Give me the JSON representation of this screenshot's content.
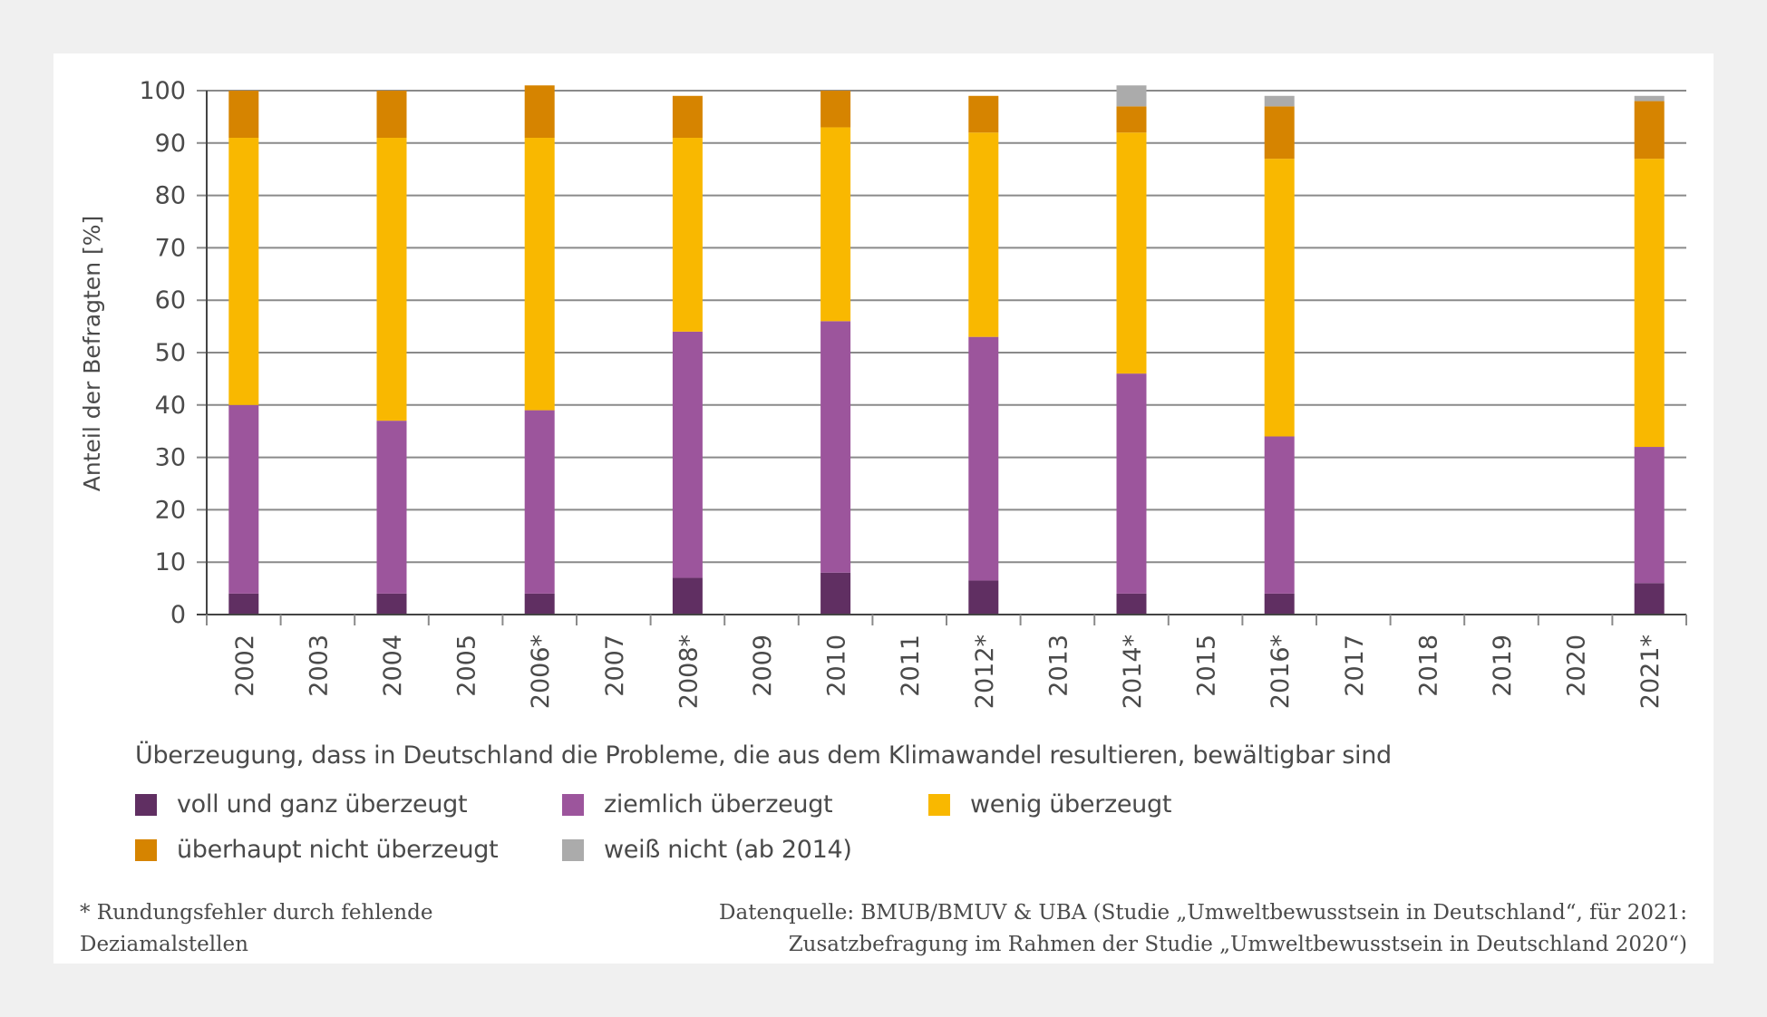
{
  "chart_data": {
    "type": "bar",
    "stacked": true,
    "title": "Überzeugung, dass in Deutschland die Probleme, die aus dem Klimawandel resultieren, bewältigbar sind",
    "xlabel": "",
    "ylabel": "Anteil der Befragten [%]",
    "ylim": [
      0,
      100
    ],
    "yticks": [
      0,
      10,
      20,
      30,
      40,
      50,
      60,
      70,
      80,
      90,
      100
    ],
    "grid": true,
    "legend_position": "bottom",
    "categories": [
      "2002",
      "2003",
      "2004",
      "2005",
      "2006*",
      "2007",
      "2008*",
      "2009",
      "2010",
      "2011",
      "2012*",
      "2013",
      "2014*",
      "2015",
      "2016*",
      "2017",
      "2018",
      "2019",
      "2020",
      "2021*"
    ],
    "series": [
      {
        "name": "voll und ganz überzeugt",
        "color": "#602f62",
        "values": [
          4,
          null,
          4,
          null,
          4,
          null,
          7,
          null,
          8,
          null,
          6.5,
          null,
          4,
          null,
          4,
          null,
          null,
          null,
          null,
          6
        ]
      },
      {
        "name": "ziemlich überzeugt",
        "color": "#9c559c",
        "values": [
          36,
          null,
          33,
          null,
          35,
          null,
          47,
          null,
          48,
          null,
          46.5,
          null,
          42,
          null,
          30,
          null,
          null,
          null,
          null,
          26
        ]
      },
      {
        "name": "wenig überzeugt",
        "color": "#f9b800",
        "values": [
          51,
          null,
          54,
          null,
          52,
          null,
          37,
          null,
          37,
          null,
          39,
          null,
          46,
          null,
          53,
          null,
          null,
          null,
          null,
          55
        ]
      },
      {
        "name": "überhaupt nicht überzeugt",
        "color": "#d68400",
        "values": [
          9,
          null,
          9,
          null,
          10,
          null,
          8,
          null,
          7,
          null,
          7,
          null,
          5,
          null,
          10,
          null,
          null,
          null,
          null,
          11
        ]
      },
      {
        "name": "weiß nicht (ab 2014)",
        "color": "#ababab",
        "values": [
          null,
          null,
          null,
          null,
          null,
          null,
          null,
          null,
          null,
          null,
          null,
          null,
          4,
          null,
          2,
          null,
          null,
          null,
          null,
          1
        ]
      }
    ]
  },
  "legend": {
    "title": "Überzeugung, dass in Deutschland die Probleme, die aus dem Klimawandel resultieren, bewältigbar sind",
    "items": [
      {
        "label": "voll und ganz überzeugt",
        "color": "#602f62"
      },
      {
        "label": "ziemlich überzeugt",
        "color": "#9c559c"
      },
      {
        "label": "wenig überzeugt",
        "color": "#f9b800"
      },
      {
        "label": "überhaupt nicht überzeugt",
        "color": "#d68400"
      },
      {
        "label": "weiß nicht (ab 2014)",
        "color": "#ababab"
      }
    ]
  },
  "notes": {
    "footnote": [
      "* Rundungsfehler durch fehlende",
      "Deziamalstellen"
    ],
    "source": [
      "Datenquelle: BMUB/BMUV & UBA (Studie „Umweltbewusstsein in Deutschland“, für 2021:",
      "Zusatzbefragung im Rahmen der Studie „Umweltbewusstsein in Deutschland 2020“)"
    ]
  },
  "colors": {
    "background": "#f0f0f0",
    "panel": "#ffffff",
    "gridline": "#8a8a8a",
    "axis": "#444444",
    "text": "#4a4a4a"
  }
}
